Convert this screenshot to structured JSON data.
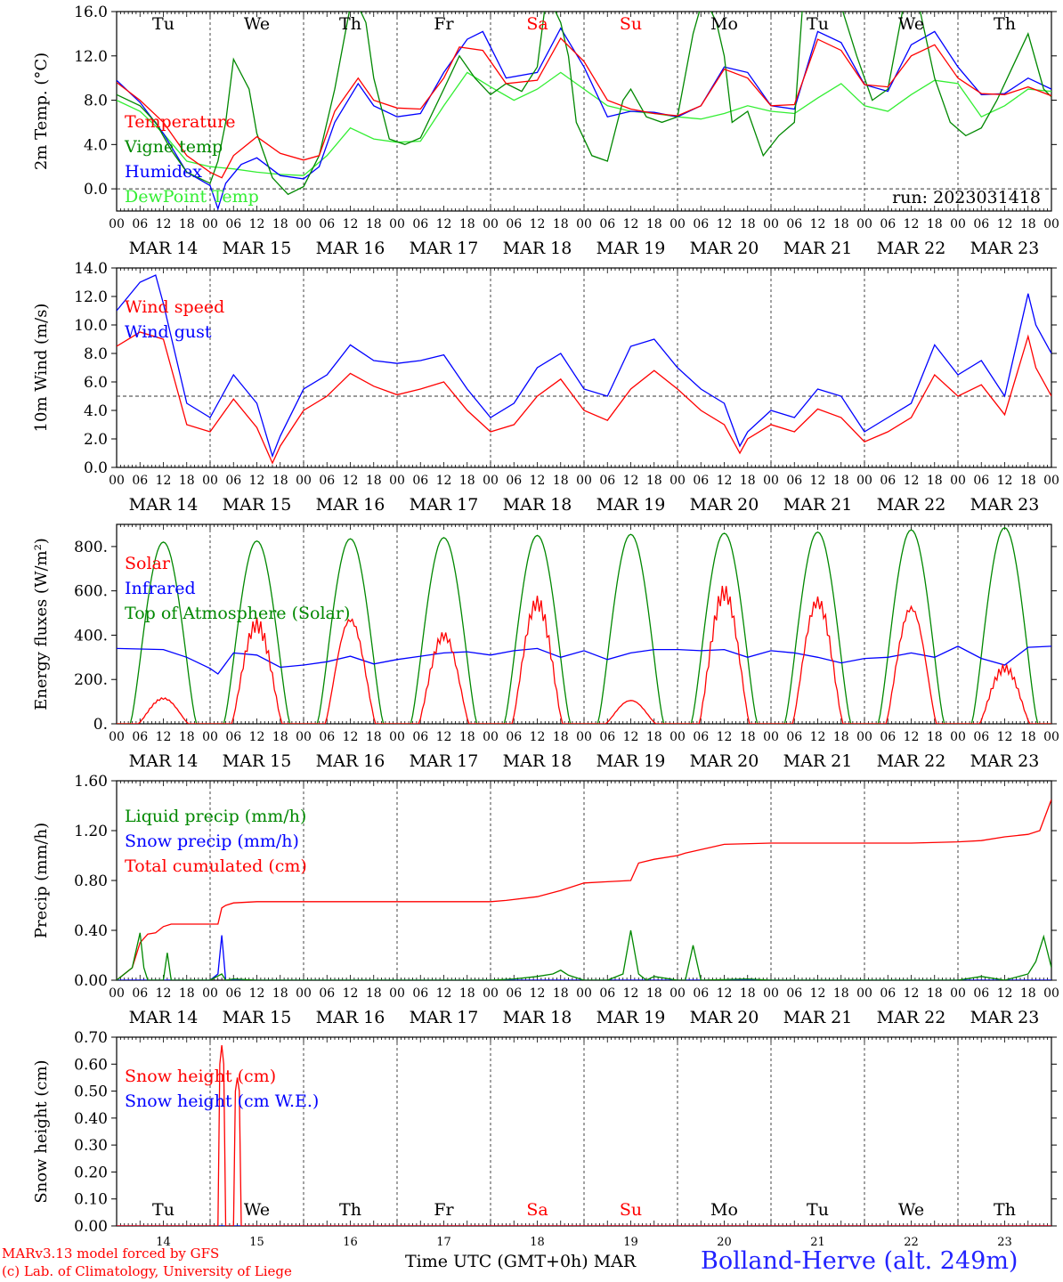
{
  "chart_data": [
    {
      "type": "line",
      "ylabel": "2m Temp. (°C)",
      "ylim": [
        -2,
        16
      ],
      "yticks": [
        "0.0",
        "4.0",
        "8.0",
        "12.0",
        "16.0"
      ],
      "hline": 0,
      "annotation": "run: 2023031418",
      "x_unit": "hours since MAR 14 00 UTC",
      "series": [
        {
          "name": "Temperature",
          "color": "#ff0000",
          "x": [
            0,
            6,
            12,
            18,
            24,
            27,
            30,
            36,
            42,
            48,
            52,
            56,
            62,
            66,
            72,
            78,
            84,
            88,
            94,
            100,
            108,
            114,
            120,
            126,
            132,
            138,
            144,
            150,
            156,
            162,
            168,
            174,
            180,
            186,
            192,
            198,
            204,
            210,
            216,
            222,
            228,
            234,
            240
          ],
          "values": [
            9.6,
            8.0,
            6.0,
            3.0,
            1.5,
            1.0,
            3.0,
            4.7,
            3.2,
            2.6,
            3.0,
            7.0,
            10.0,
            8.0,
            7.3,
            7.2,
            10.0,
            12.8,
            12.5,
            9.5,
            9.8,
            13.6,
            11.5,
            8.0,
            7.2,
            6.8,
            6.6,
            7.5,
            10.8,
            10.0,
            7.5,
            7.6,
            13.5,
            12.5,
            9.4,
            9.2,
            12.0,
            13.0,
            10.0,
            8.6,
            8.5,
            9.2,
            8.4
          ]
        },
        {
          "name": "Vigne temp",
          "color": "#008800",
          "x": [
            0,
            6,
            10,
            14,
            18,
            24,
            26,
            28,
            30,
            34,
            36,
            40,
            44,
            48,
            52,
            56,
            60,
            62,
            64,
            66,
            70,
            74,
            78,
            84,
            88,
            92,
            96,
            100,
            104,
            108,
            110,
            112,
            114,
            116,
            118,
            122,
            126,
            130,
            132,
            136,
            140,
            144,
            148,
            150,
            152,
            154,
            156,
            158,
            162,
            166,
            170,
            174,
            176,
            180,
            186,
            190,
            194,
            198,
            202,
            206,
            210,
            214,
            218,
            222,
            226,
            230,
            234,
            238,
            240
          ],
          "values": [
            8.5,
            7.5,
            6.0,
            3.5,
            1.5,
            0.5,
            2.5,
            6.0,
            11.7,
            9.0,
            5.0,
            1.0,
            -0.5,
            0.2,
            3.0,
            9.0,
            16.5,
            16.5,
            15.0,
            10.0,
            4.5,
            4.0,
            4.6,
            9.0,
            12.0,
            10.0,
            8.5,
            9.5,
            8.8,
            11.0,
            16.5,
            16.5,
            15.0,
            12.0,
            6.0,
            3.0,
            2.5,
            8.0,
            9.0,
            6.5,
            6.0,
            6.5,
            14.0,
            16.5,
            16.5,
            15.0,
            12.0,
            6.0,
            7.0,
            3.0,
            4.8,
            6.0,
            16.0,
            16.5,
            16.5,
            12.0,
            8.0,
            9.0,
            16.5,
            16.5,
            10.0,
            6.0,
            4.8,
            5.5,
            8.0,
            11.0,
            14.0,
            9.0,
            8.3
          ]
        },
        {
          "name": "Humidex",
          "color": "#0000ff",
          "x": [
            0,
            6,
            12,
            18,
            24,
            26,
            28,
            32,
            36,
            42,
            48,
            52,
            56,
            62,
            66,
            72,
            78,
            84,
            90,
            94,
            100,
            108,
            114,
            120,
            126,
            132,
            138,
            144,
            150,
            156,
            162,
            168,
            174,
            180,
            186,
            192,
            198,
            204,
            210,
            216,
            222,
            228,
            234,
            240
          ],
          "values": [
            9.8,
            7.8,
            5.0,
            1.5,
            0.3,
            -1.8,
            0.5,
            2.2,
            2.8,
            1.2,
            0.9,
            2.0,
            6.0,
            9.5,
            7.5,
            6.5,
            6.8,
            10.5,
            13.5,
            14.2,
            10.0,
            10.5,
            14.5,
            11.0,
            6.5,
            7.0,
            6.9,
            6.5,
            7.5,
            11.0,
            10.5,
            7.5,
            7.2,
            14.2,
            13.2,
            9.4,
            8.8,
            13.0,
            14.2,
            11.0,
            8.5,
            8.6,
            10.0,
            9.0
          ]
        },
        {
          "name": "DewPoint Temp",
          "color": "#33ee33",
          "x": [
            0,
            6,
            12,
            18,
            24,
            30,
            36,
            42,
            48,
            54,
            60,
            66,
            72,
            78,
            84,
            90,
            96,
            102,
            108,
            114,
            120,
            126,
            132,
            138,
            144,
            150,
            156,
            162,
            168,
            174,
            180,
            186,
            192,
            198,
            204,
            210,
            216,
            222,
            228,
            234,
            240
          ],
          "values": [
            8.0,
            7.0,
            5.0,
            2.5,
            2.0,
            1.8,
            1.5,
            1.3,
            1.2,
            3.0,
            5.5,
            4.5,
            4.2,
            4.3,
            7.5,
            10.5,
            9.2,
            8.0,
            9.0,
            10.5,
            9.0,
            7.5,
            7.0,
            6.8,
            6.5,
            6.3,
            6.8,
            7.5,
            7.0,
            6.8,
            8.2,
            9.5,
            7.5,
            7.0,
            8.5,
            9.8,
            9.5,
            6.5,
            7.5,
            9.0,
            8.8
          ]
        }
      ]
    },
    {
      "type": "line",
      "ylabel": "10m Wind (m/s)",
      "ylim": [
        0,
        14
      ],
      "yticks": [
        "0.0",
        "2.0",
        "4.0",
        "6.0",
        "8.0",
        "10.0",
        "12.0",
        "14.0"
      ],
      "hline": 5,
      "x_unit": "hours since MAR 14 00 UTC",
      "series": [
        {
          "name": "Wind speed",
          "color": "#ff0000",
          "x": [
            0,
            6,
            12,
            18,
            24,
            30,
            36,
            40,
            42,
            48,
            54,
            60,
            66,
            72,
            78,
            84,
            90,
            96,
            102,
            108,
            114,
            120,
            126,
            132,
            138,
            144,
            150,
            156,
            160,
            162,
            168,
            174,
            180,
            186,
            192,
            198,
            204,
            210,
            216,
            222,
            228,
            234,
            236,
            240
          ],
          "values": [
            8.5,
            9.5,
            9.0,
            3.0,
            2.5,
            4.8,
            2.8,
            0.3,
            1.5,
            4.0,
            5.0,
            6.6,
            5.7,
            5.1,
            5.5,
            6.0,
            4.0,
            2.5,
            3.0,
            5.0,
            6.2,
            4.0,
            3.3,
            5.5,
            6.8,
            5.5,
            4.0,
            3.0,
            1.0,
            2.0,
            3.0,
            2.5,
            4.1,
            3.5,
            1.8,
            2.5,
            3.5,
            6.5,
            5.0,
            5.8,
            3.7,
            9.2,
            7.0,
            5.0
          ]
        },
        {
          "name": "Wind gust",
          "color": "#0000ff",
          "x": [
            0,
            6,
            10,
            12,
            18,
            24,
            30,
            36,
            40,
            42,
            48,
            54,
            60,
            66,
            72,
            78,
            84,
            90,
            96,
            102,
            108,
            114,
            120,
            126,
            132,
            138,
            144,
            150,
            156,
            160,
            162,
            168,
            174,
            180,
            186,
            192,
            198,
            204,
            210,
            216,
            222,
            228,
            234,
            236,
            240
          ],
          "values": [
            11.0,
            13.0,
            13.5,
            11.5,
            4.5,
            3.5,
            6.5,
            4.5,
            0.8,
            2.2,
            5.5,
            6.5,
            8.6,
            7.5,
            7.3,
            7.5,
            7.9,
            5.5,
            3.5,
            4.5,
            7.0,
            8.0,
            5.5,
            5.0,
            8.5,
            9.0,
            7.0,
            5.5,
            4.5,
            1.5,
            2.5,
            4.0,
            3.5,
            5.5,
            5.0,
            2.5,
            3.5,
            4.5,
            8.6,
            6.5,
            7.5,
            5.0,
            12.2,
            10.0,
            8.0
          ]
        }
      ]
    },
    {
      "type": "line",
      "ylabel": "Energy fluxes (W/m²)",
      "ylim": [
        0,
        900
      ],
      "yticks": [
        "0.",
        "200.",
        "400.",
        "600.",
        "800."
      ],
      "x_unit": "hours since MAR 14 00 UTC",
      "series": [
        {
          "name": "Solar",
          "color": "#ff0000",
          "peaks": [
            120,
            480,
            490,
            420,
            580,
            110,
            630,
            580,
            545,
            270
          ]
        },
        {
          "name": "Infrared",
          "color": "#0000ff",
          "x": [
            0,
            12,
            18,
            24,
            26,
            30,
            36,
            42,
            48,
            54,
            60,
            66,
            72,
            78,
            84,
            90,
            96,
            102,
            108,
            114,
            120,
            126,
            132,
            138,
            144,
            150,
            156,
            162,
            168,
            174,
            180,
            186,
            192,
            198,
            204,
            210,
            216,
            222,
            228,
            234,
            240
          ],
          "values": [
            340,
            335,
            300,
            250,
            225,
            320,
            310,
            255,
            265,
            280,
            305,
            270,
            290,
            305,
            320,
            325,
            310,
            330,
            340,
            300,
            330,
            290,
            320,
            335,
            335,
            330,
            335,
            300,
            330,
            320,
            300,
            275,
            295,
            300,
            320,
            300,
            350,
            295,
            265,
            345,
            350
          ]
        },
        {
          "name": "Top of Atmosphere (Solar)",
          "color": "#008800",
          "peaks": [
            820,
            825,
            835,
            840,
            850,
            855,
            860,
            865,
            875,
            885
          ]
        }
      ]
    },
    {
      "type": "line",
      "ylabel": "Precip (mm/h)",
      "ylim": [
        0,
        1.6
      ],
      "yticks": [
        "0.00",
        "0.40",
        "0.80",
        "1.20",
        "1.60"
      ],
      "x_unit": "hours since MAR 14 00 UTC",
      "series": [
        {
          "name": "Liquid precip (mm/h)",
          "color": "#008800",
          "x": [
            0,
            4,
            6,
            7,
            8,
            10,
            12,
            13,
            14,
            16,
            24,
            27,
            28,
            30,
            36,
            48,
            96,
            102,
            108,
            112,
            114,
            116,
            120,
            126,
            130,
            132,
            134,
            136,
            138,
            144,
            146,
            148,
            150,
            162,
            168,
            204,
            216,
            222,
            228,
            234,
            236,
            238,
            240
          ],
          "values": [
            0.0,
            0.1,
            0.38,
            0.1,
            0.0,
            0.0,
            0.0,
            0.22,
            0.0,
            0.0,
            0.0,
            0.05,
            0.0,
            0.01,
            0.0,
            0.0,
            0.0,
            0.01,
            0.03,
            0.05,
            0.08,
            0.04,
            0.0,
            0.0,
            0.05,
            0.4,
            0.05,
            0.0,
            0.03,
            0.0,
            0.0,
            0.28,
            0.0,
            0.01,
            0.0,
            0.0,
            0.0,
            0.03,
            0.0,
            0.05,
            0.15,
            0.35,
            0.1
          ]
        },
        {
          "name": "Snow precip (mm/h)",
          "color": "#0000ff",
          "x": [
            0,
            24,
            26,
            27,
            28,
            30,
            36,
            240
          ],
          "values": [
            0.0,
            0.0,
            0.05,
            0.36,
            0.0,
            0.0,
            0.0,
            0.0
          ]
        },
        {
          "name": "Total cumulated (cm)",
          "color": "#ff0000",
          "x": [
            0,
            4,
            6,
            8,
            10,
            12,
            14,
            16,
            24,
            26,
            27,
            28,
            30,
            36,
            48,
            60,
            72,
            96,
            100,
            108,
            114,
            120,
            126,
            132,
            134,
            138,
            144,
            146,
            156,
            168,
            180,
            192,
            204,
            216,
            222,
            228,
            234,
            237,
            240
          ],
          "values": [
            0.0,
            0.1,
            0.3,
            0.37,
            0.38,
            0.43,
            0.45,
            0.45,
            0.45,
            0.45,
            0.58,
            0.6,
            0.62,
            0.63,
            0.63,
            0.63,
            0.63,
            0.63,
            0.64,
            0.67,
            0.72,
            0.78,
            0.79,
            0.8,
            0.94,
            0.97,
            1.0,
            1.02,
            1.09,
            1.1,
            1.1,
            1.1,
            1.1,
            1.11,
            1.12,
            1.15,
            1.17,
            1.2,
            1.45
          ]
        }
      ]
    },
    {
      "type": "line",
      "ylabel": "Snow height (cm)",
      "ylim": [
        0,
        0.7
      ],
      "yticks": [
        "0.00",
        "0.10",
        "0.20",
        "0.30",
        "0.40",
        "0.50",
        "0.60",
        "0.70"
      ],
      "x_unit": "hours since MAR 14 00 UTC",
      "series": [
        {
          "name": "Snow height (cm)",
          "color": "#ff0000",
          "x": [
            0,
            26,
            26.5,
            27,
            27.5,
            28,
            30,
            30.5,
            31,
            31.5,
            32,
            240
          ],
          "values": [
            0,
            0,
            0.6,
            0.67,
            0.6,
            0,
            0,
            0.5,
            0.55,
            0.5,
            0,
            0
          ]
        },
        {
          "name": "Snow height (cm W.E.)",
          "color": "#0000ff",
          "x": [
            0,
            240
          ],
          "values": [
            0,
            0
          ]
        }
      ]
    }
  ],
  "axis": {
    "hour_ticks": [
      "00",
      "06",
      "12",
      "18"
    ],
    "last_hour_tick": "00",
    "day_labels": [
      "MAR 14",
      "MAR 15",
      "MAR 16",
      "MAR 17",
      "MAR 18",
      "MAR 19",
      "MAR 20",
      "MAR 21",
      "MAR 22",
      "MAR 23"
    ],
    "weekdays": [
      "Tu",
      "We",
      "Th",
      "Fr",
      "Sa",
      "Su",
      "Mo",
      "Tu",
      "We",
      "Th"
    ],
    "weekend_color": "#ff0000",
    "day_numbers": [
      "14",
      "15",
      "16",
      "17",
      "18",
      "19",
      "20",
      "21",
      "22",
      "23"
    ]
  },
  "footer": {
    "credit_line1": "MARv3.13 model forced by GFS",
    "credit_line2": "(c) Lab. of Climatology, University of Liege",
    "axis_title": "Time UTC (GMT+0h) MAR",
    "station": "Bolland-Herve (alt. 249m)"
  }
}
